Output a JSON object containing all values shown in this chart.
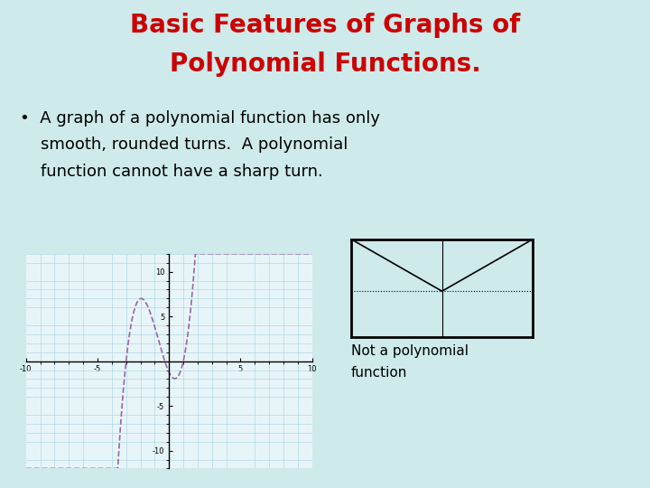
{
  "background_color": "#ceeaea",
  "title_line1": "Basic Features of Graphs of",
  "title_line2": "Polynomial Functions.",
  "title_color": "#cc0000",
  "title_fontsize": 20,
  "bullet_fontsize": 13,
  "graph_bg": "#e8f5f8",
  "graph_grid_color": "#b0d8e8",
  "curve_color": "#9966aa",
  "axis_range": [
    -10,
    10
  ],
  "y_range": [
    -12,
    12
  ],
  "not_poly_label1": "Not a polynomial",
  "not_poly_label2": "function",
  "not_poly_fontsize": 11
}
